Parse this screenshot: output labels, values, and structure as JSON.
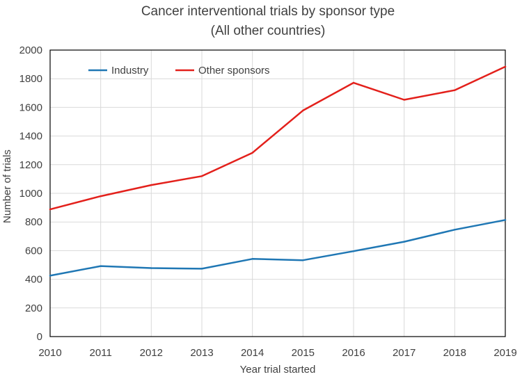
{
  "chart_data": {
    "type": "line",
    "title": [
      "Cancer interventional trials by sponsor type",
      "(All other countries)"
    ],
    "xlabel": "Year trial started",
    "ylabel": "Number of trials",
    "x": [
      2010,
      2011,
      2012,
      2013,
      2014,
      2015,
      2016,
      2017,
      2018,
      2019
    ],
    "x_tick_labels": [
      "2010",
      "2011",
      "2012",
      "2013",
      "2014",
      "2015",
      "2016",
      "2017",
      "2018",
      "2019"
    ],
    "ylim": [
      0,
      2000
    ],
    "y_ticks": [
      0,
      200,
      400,
      600,
      800,
      1000,
      1200,
      1400,
      1600,
      1800,
      2000
    ],
    "y_tick_labels": [
      "0",
      "200",
      "400",
      "600",
      "800",
      "1000",
      "1200",
      "1400",
      "1600",
      "1800",
      "2000"
    ],
    "grid": true,
    "legend_position": "top-left",
    "series": [
      {
        "name": "Industry",
        "color": "#1f77b4",
        "values": [
          425,
          492,
          478,
          474,
          542,
          533,
          596,
          662,
          746,
          814
        ]
      },
      {
        "name": "Other sponsors",
        "color": "#e3201b",
        "values": [
          888,
          980,
          1058,
          1120,
          1283,
          1578,
          1772,
          1653,
          1720,
          1884
        ]
      }
    ]
  }
}
